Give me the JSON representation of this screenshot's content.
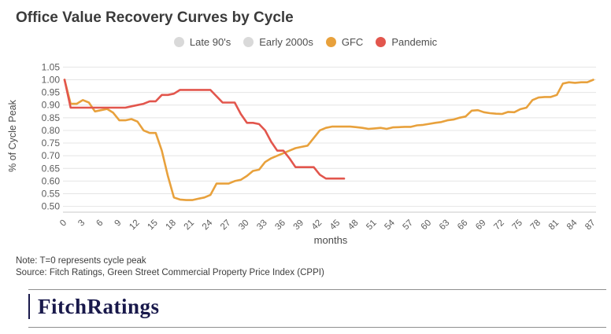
{
  "header": {
    "title": "Office Value Recovery Curves by Cycle"
  },
  "legend": {
    "items": [
      {
        "label": "Late 90's",
        "color": "#d9d9d9",
        "active": false
      },
      {
        "label": "Early 2000s",
        "color": "#d9d9d9",
        "active": false
      },
      {
        "label": "GFC",
        "color": "#e8a13c",
        "active": true
      },
      {
        "label": "Pandemic",
        "color": "#e2564d",
        "active": true
      }
    ]
  },
  "chart_data": {
    "type": "line",
    "title": "Office Value Recovery Curves by Cycle",
    "xlabel": "months",
    "ylabel": "% of Cycle Peak",
    "xlim": [
      0,
      87
    ],
    "ylim": [
      0.5,
      1.05
    ],
    "y_tick_step": 0.05,
    "x_ticks": [
      0,
      3,
      6,
      9,
      12,
      15,
      18,
      21,
      24,
      27,
      30,
      33,
      36,
      39,
      42,
      45,
      48,
      51,
      54,
      57,
      60,
      63,
      66,
      69,
      72,
      75,
      78,
      81,
      84,
      87
    ],
    "grid": "horizontal",
    "legend_position": "top-center",
    "series": [
      {
        "name": "Late 90's",
        "color": "#d9d9d9",
        "visible": false,
        "x_start": 0,
        "values": []
      },
      {
        "name": "Early 2000s",
        "color": "#d9d9d9",
        "visible": false,
        "x_start": 0,
        "values": []
      },
      {
        "name": "GFC",
        "color": "#e8a13c",
        "visible": true,
        "x_start": 0,
        "values": [
          1.0,
          0.905,
          0.905,
          0.92,
          0.91,
          0.875,
          0.88,
          0.885,
          0.87,
          0.84,
          0.84,
          0.845,
          0.835,
          0.8,
          0.79,
          0.79,
          0.72,
          0.62,
          0.535,
          0.527,
          0.525,
          0.525,
          0.53,
          0.535,
          0.545,
          0.59,
          0.59,
          0.59,
          0.6,
          0.605,
          0.62,
          0.64,
          0.645,
          0.675,
          0.69,
          0.7,
          0.71,
          0.72,
          0.73,
          0.735,
          0.74,
          0.77,
          0.8,
          0.81,
          0.815,
          0.815,
          0.815,
          0.815,
          0.813,
          0.81,
          0.806,
          0.808,
          0.81,
          0.806,
          0.812,
          0.813,
          0.814,
          0.814,
          0.82,
          0.822,
          0.826,
          0.83,
          0.833,
          0.84,
          0.843,
          0.85,
          0.855,
          0.878,
          0.88,
          0.872,
          0.868,
          0.866,
          0.865,
          0.873,
          0.872,
          0.884,
          0.89,
          0.92,
          0.93,
          0.932,
          0.932,
          0.94,
          0.985,
          0.99,
          0.988,
          0.99,
          0.99,
          1.0
        ]
      },
      {
        "name": "Pandemic",
        "color": "#e2564d",
        "visible": true,
        "x_start": 0,
        "values": [
          1.0,
          0.89,
          0.89,
          0.89,
          0.89,
          0.89,
          0.89,
          0.89,
          0.89,
          0.89,
          0.89,
          0.895,
          0.9,
          0.905,
          0.915,
          0.915,
          0.94,
          0.94,
          0.945,
          0.96,
          0.96,
          0.96,
          0.96,
          0.96,
          0.96,
          0.935,
          0.91,
          0.91,
          0.91,
          0.865,
          0.83,
          0.83,
          0.825,
          0.8,
          0.755,
          0.72,
          0.72,
          0.69,
          0.655,
          0.655,
          0.655,
          0.655,
          0.625,
          0.61,
          0.61,
          0.61,
          0.61
        ]
      }
    ]
  },
  "notes": {
    "note": "Note: T=0 represents cycle peak",
    "source": "Source: Fitch Ratings, Green Street Commercial Property Price Index (CPPI)"
  },
  "footer": {
    "logo": "FitchRatings"
  }
}
